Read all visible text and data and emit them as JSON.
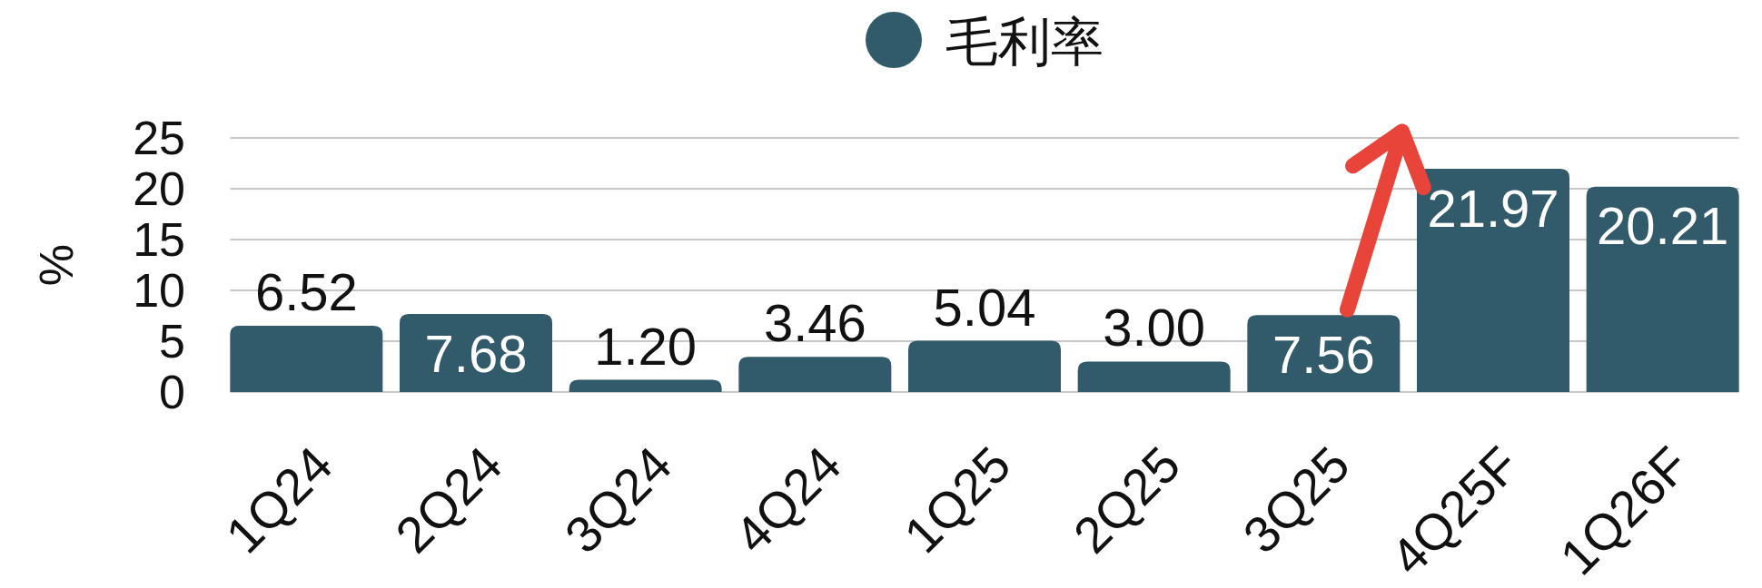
{
  "chart_data": {
    "type": "bar",
    "categories": [
      "1Q24",
      "2Q24",
      "3Q24",
      "4Q24",
      "1Q25",
      "2Q25",
      "3Q25",
      "4Q25F",
      "1Q26F"
    ],
    "series": [
      {
        "name": "毛利率",
        "color": "#315b6b",
        "values": [
          6.52,
          7.68,
          1.2,
          3.46,
          5.04,
          3.0,
          7.56,
          21.97,
          20.21
        ],
        "value_labels": [
          "6.52",
          "7.68",
          "1.20",
          "3.46",
          "5.04",
          "3.00",
          "7.56",
          "21.97",
          "20.21"
        ]
      }
    ],
    "ylabel": "%",
    "ylim": [
      0,
      25
    ],
    "yticks": [
      0,
      5,
      10,
      15,
      20,
      25
    ],
    "grid": "y",
    "legend": "top"
  }
}
